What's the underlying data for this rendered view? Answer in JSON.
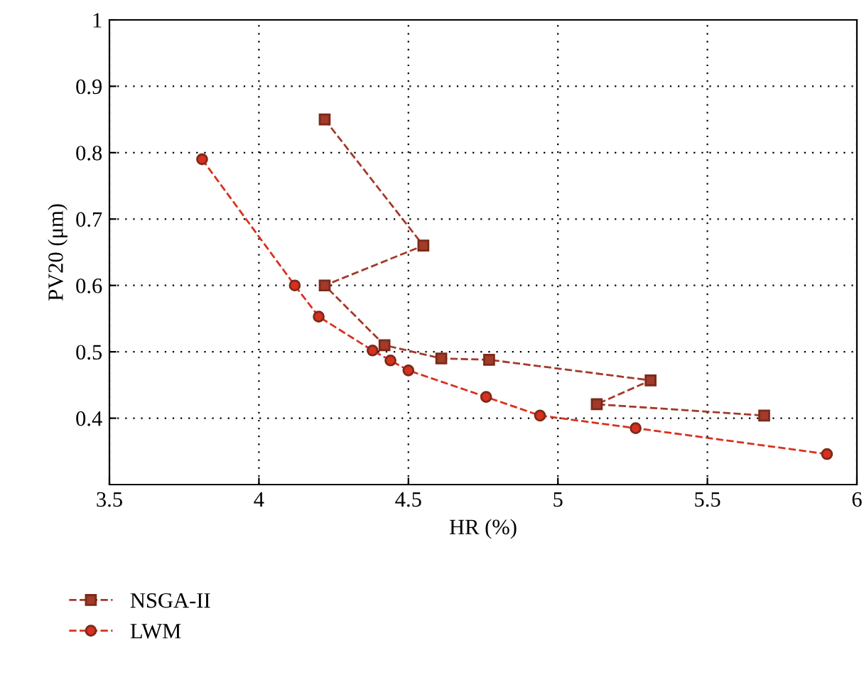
{
  "chart_data": {
    "type": "line",
    "xlabel": "HR (%)",
    "ylabel": "PV20 (μm)",
    "xlim": [
      3.5,
      6
    ],
    "ylim": [
      0.3,
      1
    ],
    "xticks": [
      3.5,
      4,
      4.5,
      5,
      5.5,
      6
    ],
    "yticks": [
      0.4,
      0.5,
      0.6,
      0.7,
      0.8,
      0.9,
      1
    ],
    "grid": true,
    "legend": "bottom",
    "line_style": "dashed",
    "series": [
      {
        "name": "NSGA-II",
        "color": "#a33a2a",
        "marker": "square",
        "x": [
          4.22,
          4.55,
          4.22,
          4.42,
          4.61,
          4.77,
          5.31,
          5.13,
          5.69
        ],
        "values": [
          0.85,
          0.66,
          0.6,
          0.51,
          0.49,
          0.488,
          0.457,
          0.421,
          0.404
        ]
      },
      {
        "name": "LWM",
        "color": "#d8301f",
        "marker": "circle",
        "x": [
          3.81,
          4.12,
          4.2,
          4.38,
          4.44,
          4.5,
          4.76,
          4.94,
          5.26,
          5.9
        ],
        "values": [
          0.79,
          0.6,
          0.553,
          0.502,
          0.487,
          0.472,
          0.432,
          0.404,
          0.385,
          0.346
        ]
      }
    ]
  }
}
